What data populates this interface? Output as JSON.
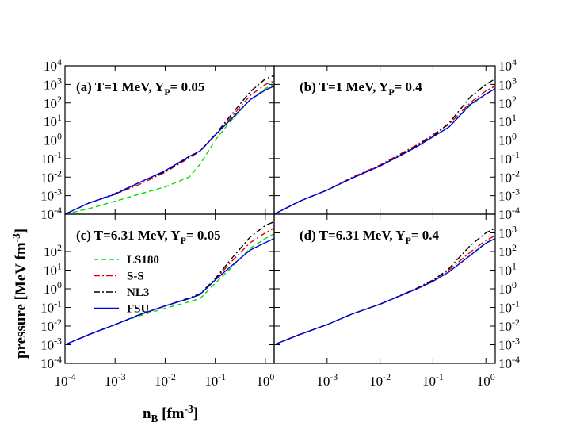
{
  "ylabel": "pressure [MeV fm^-3]",
  "xlabel": "n_B [fm^-3]",
  "chart_data": [
    {
      "type": "line",
      "title": "(a) T=1 MeV, Y_P= 0.05",
      "log_x": true,
      "log_y": true,
      "xlim": [
        0.0001,
        1.5
      ],
      "ylim": [
        0.0001,
        10000
      ],
      "xticks": [
        0.0001,
        0.001,
        0.01,
        0.1,
        1
      ],
      "yticks": [
        {
          "value": 0.0001,
          "label": "10^-4"
        },
        {
          "value": 0.001,
          "label": "10^-3"
        },
        {
          "value": 0.01,
          "label": "10^-2"
        },
        {
          "value": 0.1,
          "label": "10^-1"
        },
        {
          "value": 1,
          "label": "10^0"
        },
        {
          "value": 10,
          "label": "10^1"
        },
        {
          "value": 100,
          "label": "10^2"
        },
        {
          "value": 1000,
          "label": "10^3"
        },
        {
          "value": 10000,
          "label": "10^4"
        }
      ],
      "x": [
        0.0001,
        0.0003,
        0.001,
        0.003,
        0.01,
        0.03,
        0.05,
        0.1,
        0.2,
        0.5,
        1,
        1.5
      ],
      "series": [
        {
          "name": "LS180",
          "color": "#00dd00",
          "dash": "6,4",
          "values": [
            0.0001,
            0.0002,
            0.0005,
            0.0012,
            0.003,
            0.01,
            0.05,
            1,
            10,
            150,
            600,
            1000
          ]
        },
        {
          "name": "S-S",
          "color": "#dd0000",
          "dash": "8,3,2,3",
          "values": [
            0.0001,
            0.0004,
            0.0012,
            0.004,
            0.018,
            0.11,
            0.25,
            1.8,
            15,
            250,
            1000,
            1500
          ]
        },
        {
          "name": "NL3",
          "color": "#000000",
          "dash": "8,3,2,3",
          "values": [
            0.0001,
            0.0004,
            0.0013,
            0.005,
            0.02,
            0.12,
            0.26,
            2,
            20,
            400,
            2000,
            3000
          ]
        },
        {
          "name": "FSU",
          "color": "#0000dd",
          "dash": null,
          "values": [
            0.0001,
            0.0004,
            0.0012,
            0.005,
            0.022,
            0.13,
            0.26,
            1.9,
            12,
            150,
            500,
            800
          ]
        }
      ]
    },
    {
      "type": "line",
      "title": "(b) T=1 MeV, Y_P= 0.4",
      "log_x": true,
      "log_y": true,
      "xlim": [
        0.0001,
        1.5
      ],
      "ylim": [
        0.0001,
        10000
      ],
      "xticks": [
        0.0001,
        0.001,
        0.01,
        0.1,
        1
      ],
      "yticks": [
        {
          "value": 0.0001,
          "label": "10^-4"
        },
        {
          "value": 0.001,
          "label": "10^-3"
        },
        {
          "value": 0.01,
          "label": "10^-2"
        },
        {
          "value": 0.1,
          "label": "10^-1"
        },
        {
          "value": 1,
          "label": "10^0"
        },
        {
          "value": 10,
          "label": "10^1"
        },
        {
          "value": 100,
          "label": "10^2"
        },
        {
          "value": 1000,
          "label": "10^3"
        },
        {
          "value": 10000,
          "label": "10^4"
        }
      ],
      "x": [
        0.0001,
        0.0003,
        0.001,
        0.003,
        0.01,
        0.03,
        0.05,
        0.1,
        0.2,
        0.5,
        1,
        1.5
      ],
      "series": [
        {
          "name": "LS180",
          "color": "#00dd00",
          "dash": "6,4",
          "values": [
            0.0001,
            0.0005,
            0.002,
            0.009,
            0.04,
            0.2,
            0.45,
            1.5,
            5,
            70,
            300,
            600
          ]
        },
        {
          "name": "S-S",
          "color": "#dd0000",
          "dash": "8,3,2,3",
          "values": [
            0.0001,
            0.0005,
            0.002,
            0.01,
            0.045,
            0.25,
            0.55,
            2,
            7,
            100,
            450,
            800
          ]
        },
        {
          "name": "NL3",
          "color": "#000000",
          "dash": "8,3,2,3",
          "values": [
            0.0001,
            0.0005,
            0.002,
            0.009,
            0.04,
            0.22,
            0.5,
            1.6,
            8,
            200,
            1000,
            2000
          ]
        },
        {
          "name": "FSU",
          "color": "#0000dd",
          "dash": null,
          "values": [
            0.0001,
            0.0005,
            0.002,
            0.009,
            0.04,
            0.2,
            0.45,
            1.5,
            5,
            80,
            300,
            600
          ]
        }
      ]
    },
    {
      "type": "line",
      "title": "(c) T=6.31 MeV, Y_P= 0.05",
      "log_x": true,
      "log_y": true,
      "legend": "upper left",
      "xlim": [
        0.0001,
        1.5
      ],
      "ylim": [
        0.0001,
        10000
      ],
      "xticks": [
        {
          "value": 0.0001,
          "label": "10^-4"
        },
        {
          "value": 0.001,
          "label": "10^-3"
        },
        {
          "value": 0.01,
          "label": "10^-2"
        },
        {
          "value": 0.1,
          "label": "10^-1"
        },
        {
          "value": 1,
          "label": "10^0"
        }
      ],
      "yticks": [
        {
          "value": 0.0001,
          "label": "10^-4"
        },
        {
          "value": 0.001,
          "label": "10^-3"
        },
        {
          "value": 0.01,
          "label": "10^-2"
        },
        {
          "value": 0.1,
          "label": "10^-1"
        },
        {
          "value": 1,
          "label": "10^0"
        },
        {
          "value": 10,
          "label": "10^1"
        },
        {
          "value": 100,
          "label": "10^2"
        }
      ],
      "x": [
        0.0001,
        0.0003,
        0.001,
        0.003,
        0.01,
        0.03,
        0.05,
        0.1,
        0.2,
        0.5,
        1,
        1.5
      ],
      "series": [
        {
          "name": "LS180",
          "color": "#00dd00",
          "dash": "6,4",
          "values": [
            0.001,
            0.0035,
            0.012,
            0.035,
            0.09,
            0.2,
            0.3,
            2,
            12,
            150,
            500,
            900
          ]
        },
        {
          "name": "S-S",
          "color": "#dd0000",
          "dash": "8,3,2,3",
          "values": [
            0.001,
            0.0035,
            0.012,
            0.04,
            0.12,
            0.3,
            0.5,
            3,
            25,
            300,
            1000,
            1800
          ]
        },
        {
          "name": "NL3",
          "color": "#000000",
          "dash": "8,3,2,3",
          "values": [
            0.001,
            0.0035,
            0.012,
            0.04,
            0.12,
            0.32,
            0.55,
            3.5,
            35,
            600,
            2500,
            4000
          ]
        },
        {
          "name": "FSU",
          "color": "#0000dd",
          "dash": null,
          "values": [
            0.001,
            0.0035,
            0.012,
            0.04,
            0.12,
            0.3,
            0.5,
            3,
            15,
            120,
            300,
            500
          ]
        }
      ]
    },
    {
      "type": "line",
      "title": "(d) T=6.31 MeV, Y_P= 0.4",
      "log_x": true,
      "log_y": true,
      "xlim": [
        0.0001,
        1.5
      ],
      "ylim": [
        0.0001,
        10000
      ],
      "xticks": [
        {
          "value": 0.001,
          "label": "10^-3"
        },
        {
          "value": 0.01,
          "label": "10^-2"
        },
        {
          "value": 0.1,
          "label": "10^-1"
        },
        {
          "value": 1,
          "label": "10^0"
        }
      ],
      "yticks": [
        {
          "value": 0.0001,
          "label": "10^-4"
        },
        {
          "value": 0.001,
          "label": "10^-3"
        },
        {
          "value": 0.01,
          "label": "10^-2"
        },
        {
          "value": 0.1,
          "label": "10^-1"
        },
        {
          "value": 1,
          "label": "10^0"
        },
        {
          "value": 10,
          "label": "10^1"
        },
        {
          "value": 100,
          "label": "10^2"
        },
        {
          "value": 1000,
          "label": "10^3"
        }
      ],
      "x": [
        0.0001,
        0.0003,
        0.001,
        0.003,
        0.01,
        0.03,
        0.05,
        0.1,
        0.2,
        0.5,
        1,
        1.5
      ],
      "series": [
        {
          "name": "LS180",
          "color": "#00dd00",
          "dash": "6,4",
          "values": [
            0.001,
            0.0035,
            0.012,
            0.045,
            0.15,
            0.55,
            1,
            2.5,
            8,
            60,
            300,
            500
          ]
        },
        {
          "name": "S-S",
          "color": "#dd0000",
          "dash": "8,3,2,3",
          "values": [
            0.001,
            0.0035,
            0.012,
            0.045,
            0.15,
            0.58,
            1.1,
            3,
            10,
            90,
            400,
            700
          ]
        },
        {
          "name": "NL3",
          "color": "#000000",
          "dash": "8,3,2,3",
          "values": [
            0.001,
            0.0035,
            0.012,
            0.045,
            0.15,
            0.56,
            1.05,
            2.8,
            12,
            200,
            1000,
            1800
          ]
        },
        {
          "name": "FSU",
          "color": "#0000dd",
          "dash": null,
          "values": [
            0.001,
            0.0035,
            0.012,
            0.045,
            0.15,
            0.55,
            1,
            2.5,
            8,
            60,
            280,
            500
          ]
        }
      ]
    }
  ]
}
